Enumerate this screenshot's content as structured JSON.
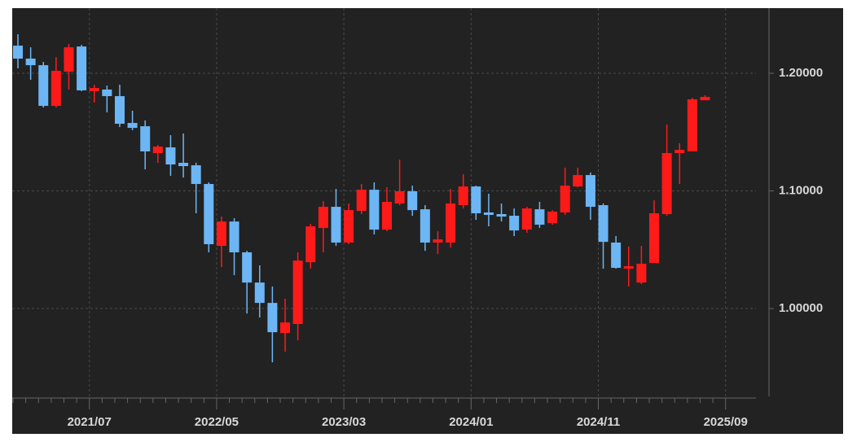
{
  "chart_data": {
    "type": "candlestick",
    "categories": [
      null,
      null,
      null,
      null,
      null,
      null,
      "2021/07",
      null,
      null,
      null,
      null,
      null,
      null,
      null,
      null,
      null,
      "2022/05",
      null,
      null,
      null,
      null,
      null,
      null,
      null,
      null,
      null,
      "2023/03",
      null,
      null,
      null,
      null,
      null,
      null,
      null,
      null,
      null,
      "2024/01",
      null,
      null,
      null,
      null,
      null,
      null,
      null,
      null,
      null,
      "2024/11",
      null,
      null,
      null,
      null,
      null,
      null,
      null,
      null,
      null,
      "2025/09"
    ],
    "open": [
      1.2235,
      1.2125,
      1.2069,
      1.1723,
      1.2014,
      1.2228,
      1.1848,
      1.1862,
      1.1806,
      1.1578,
      1.155,
      1.1322,
      1.137,
      1.1239,
      1.1218,
      1.1059,
      1.0533,
      1.074,
      1.0478,
      1.0221,
      1.0048,
      0.9792,
      0.9869,
      1.0394,
      1.0685,
      1.0865,
      1.0561,
      1.083,
      1.101,
      1.0671,
      1.0893,
      1.0997,
      1.0844,
      1.0561,
      1.0561,
      1.0879,
      1.1038,
      1.0817,
      1.0803,
      1.0789,
      1.0671,
      1.0844,
      1.0727,
      1.0817,
      1.1038,
      1.1135,
      1.0879,
      1.0561,
      1.0339,
      1.0221,
      1.0388,
      1.0803,
      1.1322,
      1.1336,
      1.1771,
      null,
      null
    ],
    "high": [
      1.2332,
      1.2221,
      1.2097,
      1.2138,
      1.2249,
      1.2242,
      1.1903,
      1.1896,
      1.1903,
      1.1682,
      1.1599,
      1.1391,
      1.1474,
      1.1488,
      1.1239,
      1.1073,
      1.0782,
      1.0768,
      1.0491,
      1.0367,
      1.0187,
      1.0083,
      1.0478,
      1.072,
      1.0913,
      1.1017,
      1.0893,
      1.1059,
      1.1073,
      1.1031,
      1.1266,
      1.1045,
      1.0879,
      1.0657,
      1.1017,
      1.1142,
      1.1045,
      1.0976,
      1.0893,
      1.0851,
      1.0865,
      1.0907,
      1.0837,
      1.1197,
      1.1197,
      1.1156,
      1.0893,
      1.0616,
      1.0526,
      1.0533,
      1.092,
      1.1564,
      1.1405,
      1.1792,
      1.1813,
      null,
      null
    ],
    "low": [
      1.2042,
      1.1945,
      1.1709,
      1.1709,
      1.1862,
      1.1848,
      1.1751,
      1.1668,
      1.1543,
      1.1516,
      1.1183,
      1.1239,
      1.1128,
      1.1114,
      1.081,
      1.0478,
      1.0353,
      1.0284,
      0.9958,
      0.9924,
      0.9543,
      0.9633,
      0.973,
      1.0339,
      1.0478,
      1.0533,
      1.0547,
      1.0803,
      1.063,
      1.0657,
      1.0879,
      1.0789,
      1.0491,
      1.0464,
      1.0519,
      1.0851,
      1.0754,
      1.0699,
      1.074,
      1.0616,
      1.0644,
      1.0685,
      1.0713,
      1.0796,
      1.1031,
      1.0754,
      1.0339,
      1.0339,
      1.0187,
      1.0208,
      1.0388,
      1.0789,
      1.1059,
      1.1336,
      1.1771,
      null,
      null
    ],
    "close": [
      1.2125,
      1.2069,
      1.1723,
      1.2021,
      1.2221,
      1.1855,
      1.1875,
      1.1806,
      1.1571,
      1.1536,
      1.1336,
      1.1377,
      1.1225,
      1.1211,
      1.1059,
      1.0547,
      1.074,
      1.0478,
      1.0221,
      1.0048,
      0.9799,
      0.9882,
      1.0408,
      1.0699,
      1.0865,
      1.0561,
      1.0837,
      1.101,
      1.0671,
      1.0907,
      1.0997,
      1.0837,
      1.0561,
      1.0588,
      1.0893,
      1.1038,
      1.081,
      1.0796,
      1.0782,
      1.0664,
      1.0851,
      1.0713,
      1.0824,
      1.1045,
      1.1135,
      1.0865,
      1.0567,
      1.0346,
      1.036,
      1.0381,
      1.081,
      1.1322,
      1.1349,
      1.1779,
      1.1799,
      null,
      null
    ],
    "up_color": "#ff1a1a",
    "down_color": "#6db6f5",
    "ylim": [
      0.9253,
      1.2554
    ],
    "yticks": [
      {
        "value": 1.0,
        "label": "1.00000"
      },
      {
        "value": 1.1,
        "label": "1.10000"
      },
      {
        "value": 1.2,
        "label": "1.20000"
      }
    ],
    "grid": true
  }
}
